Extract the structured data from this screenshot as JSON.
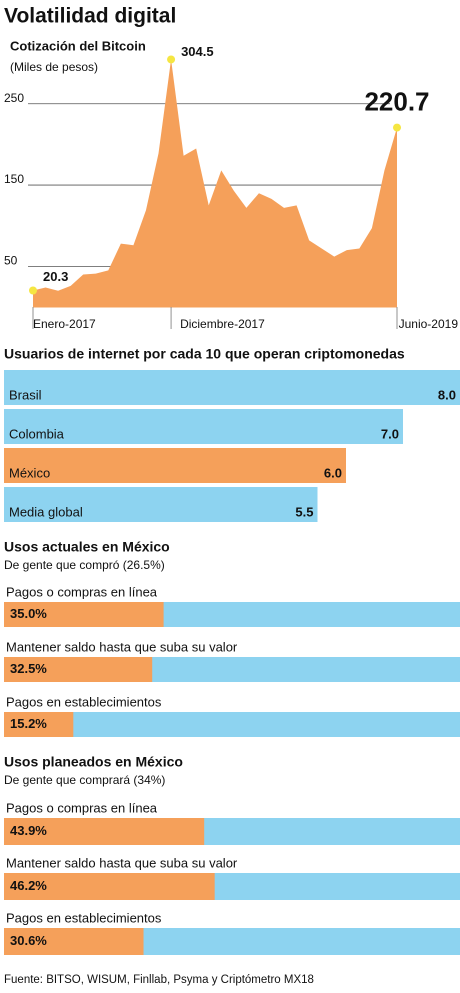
{
  "title": "Volatilidad digital",
  "chart_data": [
    {
      "type": "area",
      "title": "Cotización del Bitcoin",
      "subtitle": "(Miles de pesos)",
      "categories": [
        "Enero-2017",
        null,
        null,
        null,
        null,
        null,
        null,
        null,
        null,
        null,
        null,
        "Diciembre-2017",
        null,
        null,
        null,
        null,
        null,
        null,
        null,
        null,
        null,
        null,
        null,
        null,
        null,
        null,
        null,
        null,
        null,
        "Junio-2019"
      ],
      "values": [
        20.3,
        24,
        20,
        26,
        40,
        41,
        45,
        78,
        76,
        119,
        189,
        304.5,
        186,
        195,
        125,
        168,
        143,
        122,
        140,
        133,
        122,
        125,
        82,
        72,
        62,
        70,
        72,
        97,
        168,
        220.7
      ],
      "labeled_points": [
        0,
        11,
        29
      ],
      "ylim": [
        0,
        310
      ],
      "yticks": [
        50,
        150,
        250
      ],
      "grid": true,
      "color": "#f5a05a",
      "point_color": "#f5e642"
    },
    {
      "type": "bar",
      "orientation": "horizontal",
      "title": "Usuarios de internet por cada 10 que operan criptomonedas",
      "categories": [
        "Brasil",
        "Colombia",
        "México",
        "Media global"
      ],
      "values": [
        8.0,
        7.0,
        6.0,
        5.5
      ],
      "value_labels": [
        "8.0",
        "7.0",
        "6.0",
        "5.5"
      ],
      "colors": [
        "#8dd3f0",
        "#8dd3f0",
        "#f5a05a",
        "#8dd3f0"
      ],
      "xlim": [
        0,
        8
      ]
    },
    {
      "type": "bar",
      "orientation": "horizontal",
      "title": "Usos actuales en México",
      "subtitle": "De gente que compró (26.5%)",
      "categories": [
        "Pagos o compras en línea",
        "Mantener saldo hasta que suba su valor",
        "Pagos en establecimientos"
      ],
      "values": [
        35.0,
        32.5,
        15.2
      ],
      "value_labels": [
        "35.0%",
        "32.5%",
        "15.2%"
      ],
      "color": "#f5a05a",
      "background_color": "#8dd3f0",
      "xlim": [
        0,
        100
      ]
    },
    {
      "type": "bar",
      "orientation": "horizontal",
      "title": "Usos planeados en México",
      "subtitle": "De gente que comprará (34%)",
      "categories": [
        "Pagos o compras en línea",
        "Mantener saldo hasta que suba su valor",
        "Pagos en establecimientos"
      ],
      "values": [
        43.9,
        46.2,
        30.6
      ],
      "value_labels": [
        "43.9%",
        "46.2%",
        "30.6%"
      ],
      "color": "#f5a05a",
      "background_color": "#8dd3f0",
      "xlim": [
        0,
        100
      ]
    }
  ],
  "source": "Fuente: BITSO, WISUM, Finllab, Psyma y Criptómetro MX18"
}
